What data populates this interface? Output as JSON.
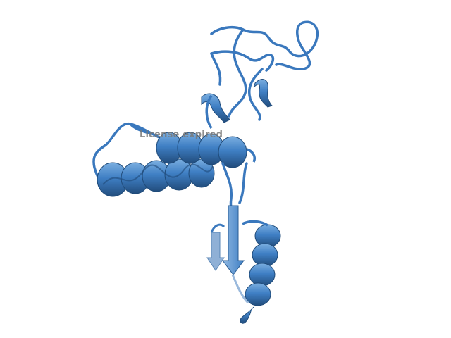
{
  "viewer": {
    "watermark": "License expired"
  },
  "colors": {
    "background": "#ffffff",
    "ribbon": "#3f7fc4",
    "ribbon_dark": "#2a5d94",
    "ribbon_light": "#7aaee0",
    "watermark": "#787878"
  },
  "structure": {
    "representation": "cartoon",
    "chain_icon": "protein-ribbon-icon"
  }
}
